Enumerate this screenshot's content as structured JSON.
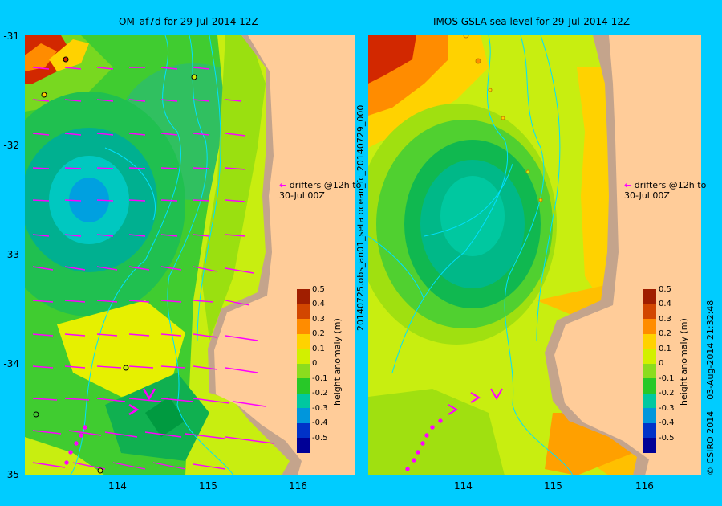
{
  "left_panel": {
    "title": "OM_af7d for 29-Jul-2014 12Z"
  },
  "right_panel": {
    "title": "IMOS GSLA sea level  for 29-Jul-2014 12Z"
  },
  "y_ticks": [
    "-31",
    "-32",
    "-33",
    "-34",
    "-35"
  ],
  "x_ticks": [
    "114",
    "115",
    "116"
  ],
  "drifter_note": {
    "arrow": "←",
    "line1": "drifters @12h to",
    "line2": "30-Jul 00Z"
  },
  "colorbar": {
    "ticks": [
      "0.5",
      "0.4",
      "0.3",
      "0.2",
      "0.1",
      "0",
      "-0.1",
      "-0.2",
      "-0.3",
      "-0.4",
      "-0.5"
    ],
    "label": "height anomaly (m)",
    "colors": [
      "#a01e00",
      "#d24600",
      "#ff8c00",
      "#ffd200",
      "#d2f000",
      "#8cdc1e",
      "#28c828",
      "#00c8a0",
      "#0096dc",
      "#0032c8",
      "#000096"
    ]
  },
  "right_vertical_label": "20140725.obs_an01_seta        ocean_fc_20140729_000",
  "credit": {
    "copyright": "© CSIRO 2014",
    "timestamp": "03-Aug-2014 21:32:48"
  }
}
